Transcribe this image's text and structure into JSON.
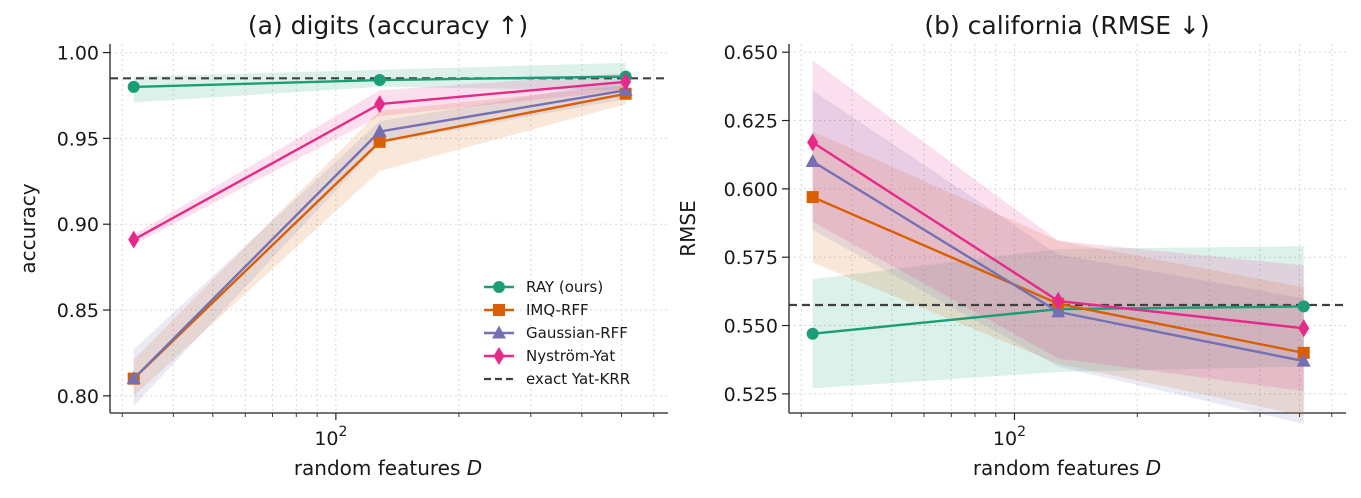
{
  "chart_data": [
    {
      "type": "line",
      "title": "(a) digits (accuracy ↑)",
      "xlabel": "random features D",
      "ylabel": "accuracy",
      "xscale": "log",
      "xlim": [
        28,
        650
      ],
      "ylim": [
        0.79,
        1.005
      ],
      "x_ticks": [
        {
          "value": 100,
          "base": "10",
          "exp": "2"
        }
      ],
      "y_ticks": [
        "0.80",
        "0.85",
        "0.90",
        "0.95",
        "1.00"
      ],
      "grid": true,
      "legend_position": "lower-right",
      "x": [
        32,
        128,
        512
      ],
      "series": [
        {
          "name": "RAY (ours)",
          "color": "#1b9e77",
          "marker": "circle",
          "values": [
            0.98,
            0.984,
            0.986
          ],
          "lower": [
            0.971,
            0.98,
            0.978
          ],
          "upper": [
            0.986,
            0.99,
            0.994
          ]
        },
        {
          "name": "IMQ-RFF",
          "color": "#d95f02",
          "marker": "square",
          "values": [
            0.81,
            0.948,
            0.976
          ],
          "lower": [
            0.8,
            0.931,
            0.97
          ],
          "upper": [
            0.821,
            0.966,
            0.981
          ]
        },
        {
          "name": "Gaussian-RFF",
          "color": "#7570b3",
          "marker": "triangle",
          "values": [
            0.81,
            0.954,
            0.978
          ],
          "lower": [
            0.794,
            0.947,
            0.973
          ],
          "upper": [
            0.827,
            0.96,
            0.984
          ]
        },
        {
          "name": "Nyström-Yat",
          "color": "#e7298a",
          "marker": "diamond",
          "values": [
            0.891,
            0.97,
            0.983
          ],
          "lower": [
            0.888,
            0.963,
            0.978
          ],
          "upper": [
            0.894,
            0.978,
            0.988
          ]
        }
      ],
      "reference": {
        "name": "exact Yat-KRR",
        "value": 0.985,
        "color": "#404040",
        "style": "dashed"
      }
    },
    {
      "type": "line",
      "title": "(b) california (RMSE ↓)",
      "xlabel": "random features D",
      "ylabel": "RMSE",
      "xscale": "log",
      "xlim": [
        28,
        650
      ],
      "ylim": [
        0.518,
        0.653
      ],
      "x_ticks": [
        {
          "value": 100,
          "base": "10",
          "exp": "2"
        }
      ],
      "y_ticks": [
        "0.525",
        "0.550",
        "0.575",
        "0.600",
        "0.625",
        "0.650"
      ],
      "grid": true,
      "x": [
        32,
        128,
        512
      ],
      "series": [
        {
          "name": "RAY (ours)",
          "color": "#1b9e77",
          "marker": "circle",
          "values": [
            0.547,
            0.556,
            0.557
          ],
          "lower": [
            0.527,
            0.533,
            0.535
          ],
          "upper": [
            0.567,
            0.578,
            0.579
          ]
        },
        {
          "name": "IMQ-RFF",
          "color": "#d95f02",
          "marker": "square",
          "values": [
            0.597,
            0.558,
            0.54
          ],
          "lower": [
            0.573,
            0.536,
            0.517
          ],
          "upper": [
            0.621,
            0.581,
            0.564
          ]
        },
        {
          "name": "Gaussian-RFF",
          "color": "#7570b3",
          "marker": "triangle",
          "values": [
            0.61,
            0.555,
            0.537
          ],
          "lower": [
            0.585,
            0.535,
            0.514
          ],
          "upper": [
            0.636,
            0.576,
            0.56
          ]
        },
        {
          "name": "Nyström-Yat",
          "color": "#e7298a",
          "marker": "diamond",
          "values": [
            0.617,
            0.559,
            0.549
          ],
          "lower": [
            0.588,
            0.538,
            0.526
          ],
          "upper": [
            0.647,
            0.581,
            0.572
          ]
        }
      ],
      "reference": {
        "name": "exact Yat-KRR",
        "value": 0.5575,
        "color": "#404040",
        "style": "dashed"
      }
    }
  ]
}
